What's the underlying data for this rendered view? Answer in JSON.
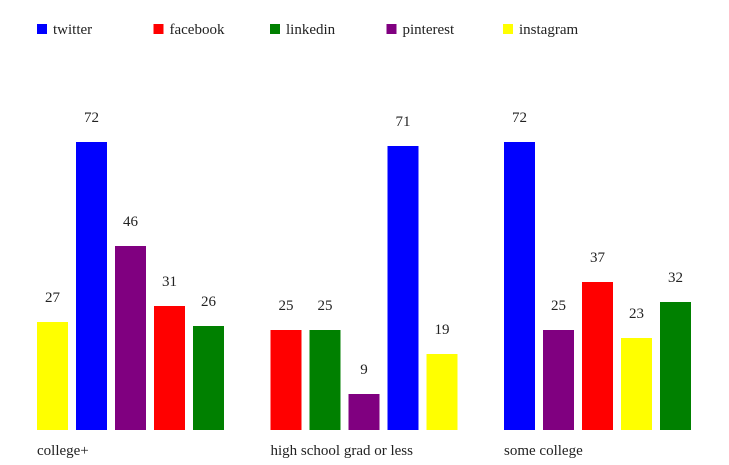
{
  "chart_data": {
    "type": "bar",
    "title": "",
    "xlabel": "",
    "ylabel": "",
    "ylim": [
      0,
      72
    ],
    "grid": false,
    "legend_position": "top-left",
    "legend": [
      {
        "name": "twitter",
        "color": "#0000ff"
      },
      {
        "name": "facebook",
        "color": "#ff0000"
      },
      {
        "name": "linkedin",
        "color": "#008000"
      },
      {
        "name": "pinterest",
        "color": "#800080"
      },
      {
        "name": "instagram",
        "color": "#ffff00"
      }
    ],
    "groups": [
      {
        "category": "college+",
        "bars": [
          {
            "series": "instagram",
            "value": 27
          },
          {
            "series": "twitter",
            "value": 72
          },
          {
            "series": "pinterest",
            "value": 46
          },
          {
            "series": "facebook",
            "value": 31
          },
          {
            "series": "linkedin",
            "value": 26
          }
        ]
      },
      {
        "category": "high school grad or less",
        "bars": [
          {
            "series": "facebook",
            "value": 25
          },
          {
            "series": "linkedin",
            "value": 25
          },
          {
            "series": "pinterest",
            "value": 9
          },
          {
            "series": "twitter",
            "value": 71
          },
          {
            "series": "instagram",
            "value": 19
          }
        ]
      },
      {
        "category": "some college",
        "bars": [
          {
            "series": "twitter",
            "value": 72
          },
          {
            "series": "pinterest",
            "value": 25
          },
          {
            "series": "facebook",
            "value": 37
          },
          {
            "series": "instagram",
            "value": 23
          },
          {
            "series": "linkedin",
            "value": 32
          }
        ]
      }
    ]
  }
}
